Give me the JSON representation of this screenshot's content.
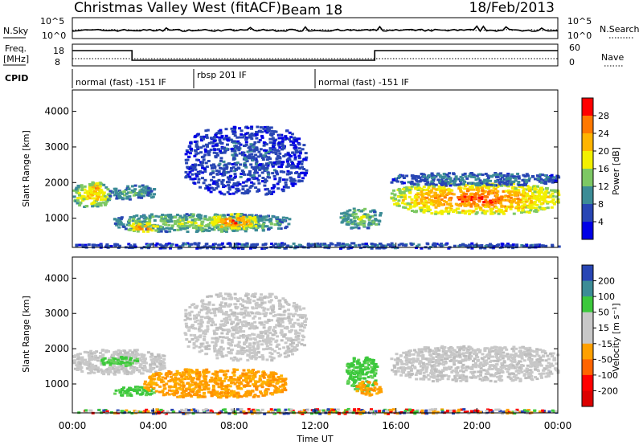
{
  "header": {
    "station": "Christmas Valley West (fitACF)",
    "beam": "Beam 18",
    "date": "18/Feb/2013"
  },
  "noise_panel": {
    "left_label": "N.Sky",
    "right_label": "N.Search",
    "left_ticks": [
      "10^5",
      "10^0"
    ],
    "right_ticks": [
      "10^5",
      "10^0"
    ]
  },
  "freq_panel": {
    "left_label_1": "Freq.",
    "left_label_2": "[MHz]",
    "right_label": "Nave",
    "left_ticks": [
      "18",
      "8"
    ],
    "right_ticks": [
      "60",
      "0"
    ],
    "freq_steps": [
      {
        "from_ut": 0.0,
        "to_ut": 2.95,
        "level": "high"
      },
      {
        "from_ut": 2.95,
        "to_ut": 14.95,
        "level": "low"
      },
      {
        "from_ut": 14.95,
        "to_ut": 24.0,
        "level": "high"
      }
    ]
  },
  "cpid": {
    "label": "CPID",
    "segments": [
      {
        "text": "normal (fast) -151 IF",
        "start_ut": 0.0
      },
      {
        "text": "rbsp 201 IF",
        "start_ut": 6.0
      },
      {
        "text": "normal (fast) -151 IF",
        "start_ut": 12.0
      }
    ]
  },
  "chart_data": [
    {
      "type": "heatmap",
      "name": "power",
      "ylabel": "Slant Range [km]",
      "colorbar_label": "Power [dB]",
      "colorbar_ticks": [
        "28",
        "24",
        "20",
        "16",
        "12",
        "8",
        "4"
      ],
      "colorbar_colors": [
        "#ff0000",
        "#ff7800",
        "#ffb400",
        "#f2f000",
        "#7dc864",
        "#3c8c96",
        "#2846b4",
        "#0000e6"
      ],
      "xlim": [
        0,
        24
      ],
      "ylim": [
        180,
        4600
      ],
      "yticks": [
        1000,
        2000,
        3000,
        4000
      ],
      "ytick_labels": [
        "1000",
        "2000",
        "3000",
        "4000"
      ],
      "features": [
        {
          "t0": 0.0,
          "t1": 1.8,
          "r0": 1350,
          "r1": 2000,
          "level": 0.65
        },
        {
          "t0": 0.8,
          "t1": 1.4,
          "r0": 1700,
          "r1": 2050,
          "level": 0.8
        },
        {
          "t0": 1.8,
          "t1": 4.0,
          "r0": 1550,
          "r1": 1950,
          "level": 0.35
        },
        {
          "t0": 2.0,
          "t1": 10.7,
          "r0": 650,
          "r1": 1150,
          "level": 0.45
        },
        {
          "t0": 2.7,
          "t1": 4.2,
          "r0": 650,
          "r1": 900,
          "level": 0.82
        },
        {
          "t0": 6.8,
          "t1": 9.0,
          "r0": 700,
          "r1": 1150,
          "level": 0.85
        },
        {
          "t0": 5.5,
          "t1": 11.5,
          "r0": 1700,
          "r1": 3600,
          "level": 0.15
        },
        {
          "t0": 13.2,
          "t1": 15.2,
          "r0": 750,
          "r1": 1300,
          "level": 0.45
        },
        {
          "t0": 15.7,
          "t1": 24.0,
          "r0": 1150,
          "r1": 2000,
          "level": 0.85
        },
        {
          "t0": 15.7,
          "t1": 24.0,
          "r0": 1950,
          "r1": 2300,
          "level": 0.25
        },
        {
          "t0": 0.0,
          "t1": 24.0,
          "r0": 180,
          "r1": 330,
          "level": 0.2
        }
      ]
    },
    {
      "type": "heatmap",
      "name": "velocity",
      "ylabel": "Slant Range [km]",
      "colorbar_label": "Velocity [m s⁻¹]",
      "colorbar_ticks": [
        "200",
        "100",
        "50",
        "15",
        "-15",
        "-50",
        "-100",
        "-200"
      ],
      "colorbar_colors": [
        "#2846b4",
        "#3c8c96",
        "#3cc83c",
        "#c8c8c8",
        "#c8c8c8",
        "#ffa000",
        "#ff6400",
        "#ff0000",
        "#dc0000"
      ],
      "xlim": [
        0,
        24
      ],
      "ylim": [
        180,
        4600
      ],
      "yticks": [
        1000,
        2000,
        3000,
        4000
      ],
      "ytick_labels": [
        "1000",
        "2000",
        "3000",
        "4000"
      ],
      "xticks": [
        0,
        4,
        8,
        12,
        16,
        20,
        24
      ],
      "xtick_labels": [
        "00:00",
        "04:00",
        "08:00",
        "12:00",
        "16:00",
        "20:00",
        "00:00"
      ],
      "xlabel": "Time UT",
      "features": [
        {
          "t0": 0.0,
          "t1": 4.5,
          "r0": 1300,
          "r1": 2000,
          "class": "gray"
        },
        {
          "t0": 1.3,
          "t1": 3.2,
          "r0": 1550,
          "r1": 1800,
          "class": "green"
        },
        {
          "t0": 2.0,
          "t1": 4.0,
          "r0": 700,
          "r1": 950,
          "class": "green"
        },
        {
          "t0": 3.5,
          "t1": 10.5,
          "r0": 650,
          "r1": 1450,
          "class": "orange"
        },
        {
          "t0": 5.5,
          "t1": 11.5,
          "r0": 1700,
          "r1": 3600,
          "class": "gray"
        },
        {
          "t0": 13.5,
          "t1": 15.0,
          "r0": 800,
          "r1": 1800,
          "class": "green"
        },
        {
          "t0": 14.0,
          "t1": 15.2,
          "r0": 700,
          "r1": 1100,
          "class": "orange"
        },
        {
          "t0": 15.7,
          "t1": 24.0,
          "r0": 1100,
          "r1": 2100,
          "class": "gray"
        },
        {
          "t0": 0.0,
          "t1": 24.0,
          "r0": 180,
          "r1": 320,
          "class": "mixed"
        }
      ]
    }
  ]
}
